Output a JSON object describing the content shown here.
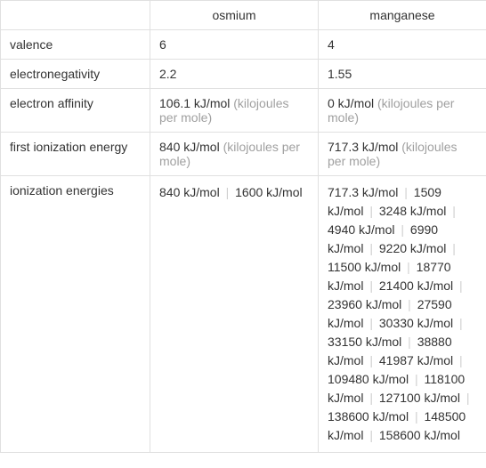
{
  "table": {
    "header": {
      "prop": "",
      "col1": "osmium",
      "col2": "manganese"
    },
    "rows": {
      "valence": {
        "label": "valence",
        "col1": "6",
        "col2": "4"
      },
      "electronegativity": {
        "label": "electronegativity",
        "col1": "2.2",
        "col2": "1.55"
      },
      "electron_affinity": {
        "label": "electron affinity",
        "col1_value": "106.1 kJ/mol",
        "col1_note": "(kilojoules per mole)",
        "col2_value": "0 kJ/mol",
        "col2_note": "(kilojoules per mole)"
      },
      "first_ionization": {
        "label": "first ionization energy",
        "col1_value": "840 kJ/mol",
        "col1_note": "(kilojoules per mole)",
        "col2_value": "717.3 kJ/mol",
        "col2_note": "(kilojoules per mole)"
      },
      "ionization_energies": {
        "label": "ionization energies",
        "col1_values": [
          "840 kJ/mol",
          "1600 kJ/mol"
        ],
        "col2_values": [
          "717.3 kJ/mol",
          "1509 kJ/mol",
          "3248 kJ/mol",
          "4940 kJ/mol",
          "6990 kJ/mol",
          "9220 kJ/mol",
          "11500 kJ/mol",
          "18770 kJ/mol",
          "21400 kJ/mol",
          "23960 kJ/mol",
          "27590 kJ/mol",
          "30330 kJ/mol",
          "33150 kJ/mol",
          "38880 kJ/mol",
          "41987 kJ/mol",
          "109480 kJ/mol",
          "118100 kJ/mol",
          "127100 kJ/mol",
          "138600 kJ/mol",
          "148500 kJ/mol",
          "158600 kJ/mol"
        ]
      }
    },
    "colors": {
      "border": "#e0e0e0",
      "text": "#333333",
      "note": "#a0a0a0",
      "separator": "#d0d0d0",
      "background": "#ffffff"
    },
    "col_widths": {
      "prop": 168,
      "element": 189
    }
  }
}
